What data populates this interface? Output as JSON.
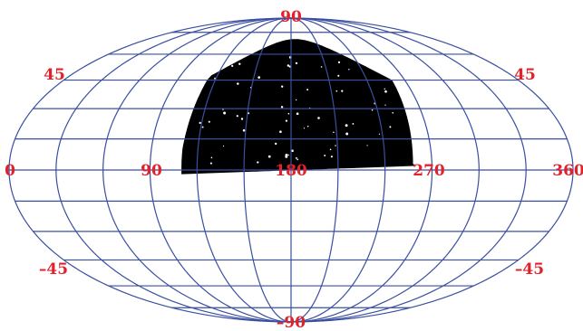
{
  "projection": "mollweide",
  "colors": {
    "grid": "#3a4fa0",
    "label": "#e0222a",
    "footprint": "#000000",
    "background": "#ffffff"
  },
  "grid": {
    "longitude_step_deg": 30,
    "latitude_step_deg": 15
  },
  "labels": {
    "lat_top": "90",
    "lat_bottom": "–90",
    "lat_45_left": "45",
    "lat_45_right": "45",
    "lat_m45_left": "–45",
    "lat_m45_right": "–45",
    "lon_0": "0",
    "lon_90": "90",
    "lon_180": "180",
    "lon_270": "270",
    "lon_360": "360"
  },
  "footprint": {
    "description_visible": false,
    "ra_range_deg": [
      110,
      260
    ],
    "dec_range_deg": [
      -2,
      70
    ]
  }
}
